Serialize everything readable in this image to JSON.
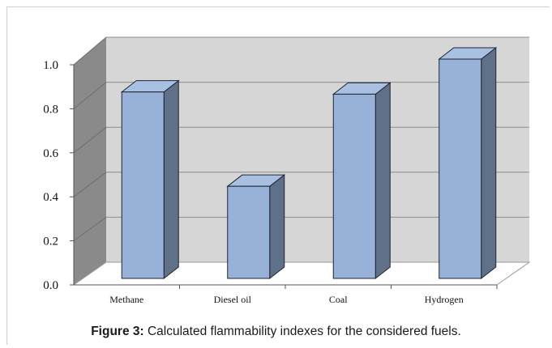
{
  "chart_data": {
    "type": "bar",
    "categories": [
      "Methane",
      "Diesel oil",
      "Coal",
      "Hydrogen"
    ],
    "values": [
      0.85,
      0.42,
      0.84,
      1.0
    ],
    "ylim": [
      0,
      1.0
    ],
    "yticks": [
      "0.0",
      "0.2",
      "0.4",
      "0.6",
      "0.8",
      "1.0"
    ],
    "grid": true,
    "colors": {
      "bar_front": "#97b1d8",
      "bar_side": "#5f7089",
      "bar_top": "#a8c0e2",
      "back_wall": "#d6d6d6",
      "side_wall": "#8a8a8a"
    }
  },
  "caption": {
    "label": "Figure 3:",
    "text": " Calculated flammability indexes for the considered fuels."
  }
}
